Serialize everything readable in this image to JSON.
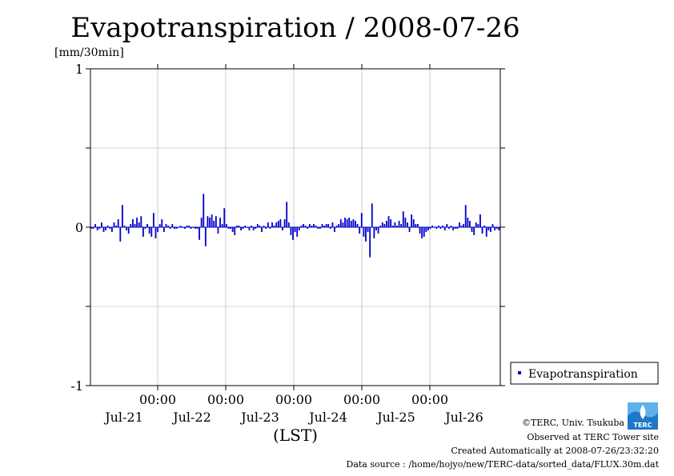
{
  "chart_data": {
    "type": "bar",
    "title": "Evapotranspiration / 2008-07-26",
    "ylabel": "[mm/30min]",
    "xlabel": "(LST)",
    "ylim": [
      -1,
      1
    ],
    "yticks": [
      "1",
      "0",
      "-1"
    ],
    "xticks_time": [
      "00:00",
      "00:00",
      "00:00",
      "00:00",
      "00:00"
    ],
    "xticks_date": [
      "Jul-21",
      "Jul-22",
      "Jul-23",
      "Jul-24",
      "Jul-25",
      "Jul-26"
    ],
    "grid": true,
    "legend_position": "bottom-right",
    "series": [
      {
        "name": "Evapotranspiration",
        "color": "#0000cc",
        "values": [
          -0.01,
          -0.01,
          0.02,
          -0.02,
          -0.01,
          0.03,
          -0.03,
          -0.02,
          0.01,
          -0.01,
          -0.03,
          0.03,
          0.01,
          0.05,
          -0.09,
          0.14,
          0.01,
          -0.02,
          -0.04,
          0.02,
          0.05,
          0.02,
          0.06,
          0.03,
          0.07,
          -0.06,
          -0.01,
          0.02,
          -0.04,
          -0.06,
          0.09,
          -0.07,
          -0.03,
          0.02,
          0.05,
          -0.03,
          0.02,
          0.01,
          -0.01,
          0.02,
          -0.01,
          -0.01,
          0,
          0.01,
          0,
          -0.01,
          0.01,
          0.01,
          -0.01,
          0,
          -0.01,
          -0.01,
          -0.08,
          0.06,
          0.21,
          -0.12,
          0.07,
          0.06,
          0.08,
          0.04,
          0.07,
          -0.04,
          0.06,
          0.02,
          0.12,
          0.02,
          -0.01,
          -0.01,
          -0.03,
          -0.05,
          0.01,
          0.01,
          -0.02,
          -0.01,
          0.01,
          0,
          -0.02,
          0.01,
          -0.02,
          -0.01,
          0.02,
          0.01,
          -0.03,
          0.01,
          -0.01,
          0.03,
          -0.01,
          0.03,
          0.01,
          0.03,
          0.04,
          0.05,
          -0.02,
          0.05,
          0.16,
          0.03,
          -0.05,
          -0.08,
          -0.03,
          -0.06,
          -0.02,
          0.01,
          0.02,
          0.01,
          -0.01,
          0.02,
          0.01,
          0.02,
          0.01,
          -0.01,
          -0.01,
          0.02,
          0.01,
          0.02,
          0.02,
          -0.01,
          0.03,
          -0.03,
          0.01,
          0.02,
          0.05,
          0.03,
          0.06,
          0.05,
          0.06,
          0.04,
          0.05,
          0.04,
          0.02,
          -0.04,
          0.09,
          -0.06,
          -0.09,
          -0.03,
          -0.19,
          0.15,
          -0.07,
          -0.02,
          -0.04,
          0.01,
          0.03,
          0.02,
          0.04,
          0.07,
          0.05,
          0.01,
          0.03,
          0.01,
          0.04,
          0.02,
          0.1,
          0.06,
          0.03,
          -0.03,
          0.08,
          0.05,
          0.02,
          0.02,
          -0.04,
          -0.07,
          -0.06,
          -0.03,
          -0.02,
          -0.01,
          0.01,
          0,
          -0.01,
          0.01,
          -0.01,
          0.01,
          -0.02,
          0.02,
          -0.01,
          0.01,
          -0.02,
          -0.01,
          -0.01,
          0.03,
          0.01,
          0.02,
          0.14,
          0.06,
          0.04,
          -0.03,
          -0.05,
          0.03,
          0.02,
          0.08,
          -0.04,
          0.01,
          -0.06,
          -0.02,
          -0.03,
          0.02,
          -0.02,
          -0.01,
          -0.02
        ]
      }
    ]
  },
  "credits": {
    "copyright": "©TERC, Univ. Tsukuba",
    "site": "Observed at TERC Tower site",
    "created": "Created Automatically at 2008-07-26/23:32:20",
    "source": "Data source : /home/hojyo/new/TERC-data/sorted_data/FLUX.30m.dat"
  },
  "logo": {
    "text": "TERC",
    "icon": "terc-logo-icon"
  }
}
